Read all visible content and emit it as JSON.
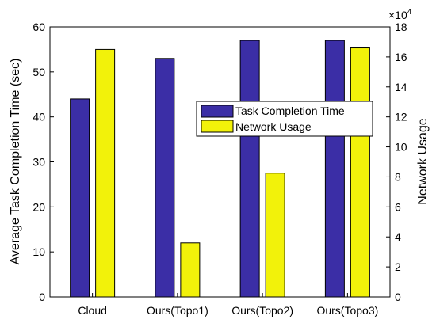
{
  "chart_data": {
    "type": "bar",
    "categories": [
      "Cloud",
      "Ours(Topo1)",
      "Ours(Topo2)",
      "Ours(Topo3)"
    ],
    "series": [
      {
        "name": "Task Completion Time",
        "axis": "left",
        "values": [
          44,
          53,
          57,
          57
        ],
        "color": "#3b2ea6"
      },
      {
        "name": "Network Usage",
        "axis": "right",
        "values": [
          16.5,
          3.6,
          8.25,
          16.6
        ],
        "color": "#f2f20a"
      }
    ],
    "ylabel_left": "Average Task Completion Time (sec)",
    "ylabel_right": "Network Usage",
    "right_axis_multiplier": "×10",
    "right_axis_exponent": "4",
    "ylim_left": [
      0,
      60
    ],
    "ylim_right": [
      0,
      18
    ],
    "yticks_left": [
      0,
      10,
      20,
      30,
      40,
      50,
      60
    ],
    "yticks_right": [
      0,
      2,
      4,
      6,
      8,
      10,
      12,
      14,
      16,
      18
    ],
    "legend_position": "center-right",
    "grid": false
  }
}
